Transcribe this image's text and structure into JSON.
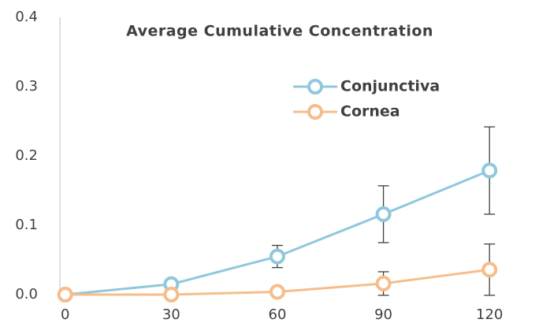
{
  "chart_data": {
    "type": "line",
    "title": "Average Cumulative Concentration",
    "x": [
      0,
      30,
      60,
      90,
      120
    ],
    "series": [
      {
        "name": "Conjunctiva",
        "color": "#8fc8dc",
        "values": [
          0,
          0.015,
          0.055,
          0.116,
          0.179
        ],
        "errors": [
          0,
          0.002,
          0.016,
          0.041,
          0.063
        ]
      },
      {
        "name": "Cornea",
        "color": "#f6bd8b",
        "values": [
          0,
          0,
          0.004,
          0.016,
          0.036
        ],
        "errors": [
          0,
          0,
          0.002,
          0.017,
          0.037
        ]
      }
    ],
    "xlim": [
      -1.5,
      134
    ],
    "xticks": [
      0,
      30,
      60,
      90,
      120
    ],
    "ylim": [
      0,
      0.4
    ],
    "yticks": [
      {
        "value": 0,
        "label": "0.0"
      },
      0.1,
      0.2,
      0.3,
      0.4
    ],
    "grid": false,
    "legend": "upper right"
  }
}
